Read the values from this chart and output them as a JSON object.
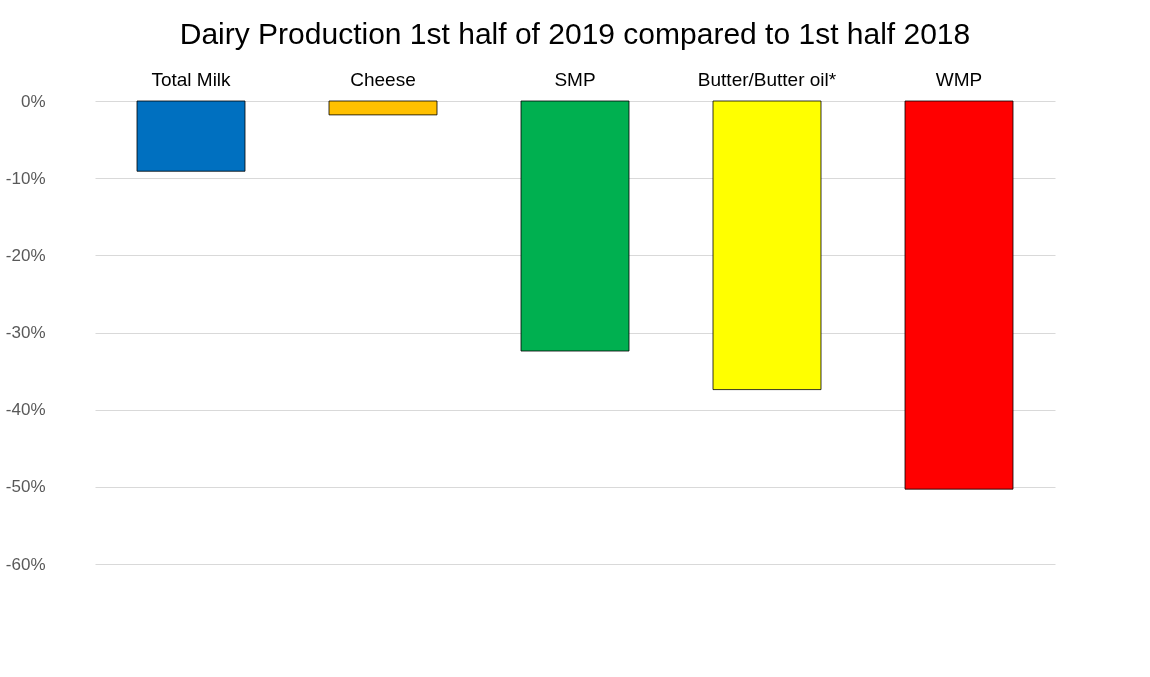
{
  "chart_data": {
    "type": "bar",
    "title": "Dairy Production 1st half of 2019 compared to 1st half 2018",
    "categories": [
      "Total Milk",
      "Cheese",
      "SMP",
      "Butter/Butter oil*",
      "WMP"
    ],
    "values": [
      -9.1,
      -1.8,
      -32.4,
      -37.4,
      -50.3
    ],
    "colors": [
      "#0070c0",
      "#ffc000",
      "#00b050",
      "#ffff00",
      "#ff0000"
    ],
    "ylim": [
      -60,
      0
    ],
    "yticks": [
      {
        "value": 0,
        "label": "0%"
      },
      {
        "value": -10,
        "label": "-10%"
      },
      {
        "value": -20,
        "label": "-20%"
      },
      {
        "value": -30,
        "label": "-30%"
      },
      {
        "value": -40,
        "label": "-40%"
      },
      {
        "value": -50,
        "label": "-50%"
      },
      {
        "value": -60,
        "label": "-60%"
      }
    ],
    "grid": "y"
  }
}
